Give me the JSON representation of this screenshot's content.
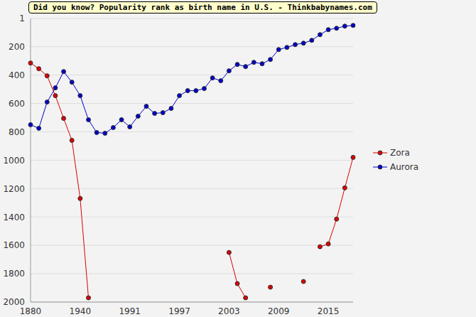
{
  "chart_data": {
    "type": "line",
    "title": "Did you know? Popularity rank as birth name in U.S. - Thinkbabynames.com",
    "categories": [
      "1880",
      null,
      null,
      null,
      null,
      null,
      "1940",
      null,
      null,
      null,
      null,
      null,
      "1991",
      null,
      null,
      null,
      null,
      null,
      "1997",
      null,
      null,
      null,
      null,
      null,
      "2003",
      null,
      null,
      null,
      null,
      null,
      "2009",
      null,
      null,
      null,
      null,
      null,
      "2015",
      null,
      null,
      null
    ],
    "series": [
      {
        "name": "Zora",
        "color": "#dd0000",
        "marker": "circle",
        "values": [
          315,
          355,
          405,
          545,
          705,
          860,
          1270,
          1970,
          null,
          null,
          null,
          null,
          null,
          null,
          null,
          null,
          null,
          null,
          null,
          null,
          null,
          null,
          null,
          null,
          1650,
          1870,
          1970,
          null,
          null,
          1895,
          null,
          null,
          null,
          1855,
          null,
          1610,
          1590,
          1415,
          1195,
          980
        ]
      },
      {
        "name": "Aurora",
        "color": "#0000cc",
        "marker": "circle",
        "values": [
          750,
          775,
          590,
          490,
          375,
          450,
          545,
          715,
          805,
          810,
          770,
          715,
          765,
          690,
          620,
          670,
          665,
          635,
          545,
          510,
          510,
          495,
          420,
          440,
          370,
          325,
          340,
          310,
          320,
          290,
          220,
          205,
          185,
          175,
          155,
          115,
          80,
          70,
          55,
          50
        ]
      }
    ],
    "ylim": [
      2000,
      1
    ],
    "yticks": [
      1,
      200,
      400,
      600,
      800,
      1000,
      1200,
      1400,
      1600,
      1800,
      2000
    ],
    "grid": true,
    "legend": "right"
  }
}
